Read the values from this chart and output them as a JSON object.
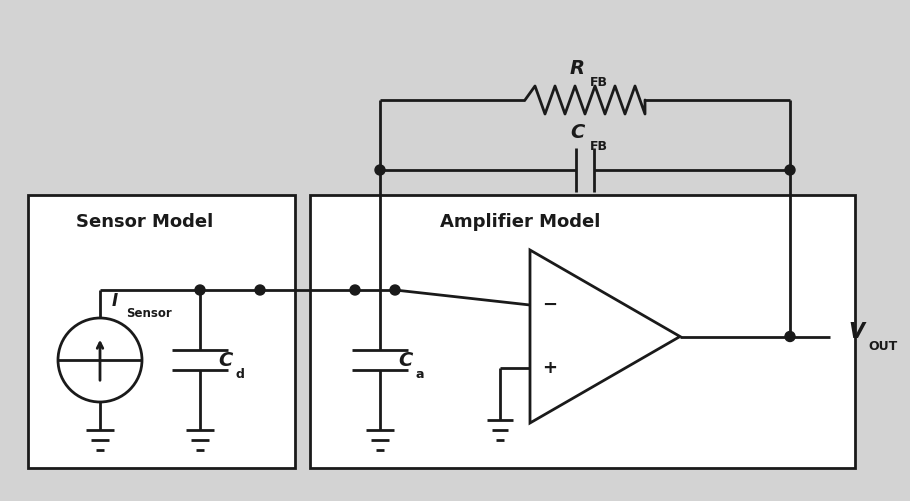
{
  "bg_color": "#d3d3d3",
  "box_color": "#ffffff",
  "line_color": "#1a1a1a",
  "text_color": "#1a1a1a",
  "sensor_label": "Sensor Model",
  "amp_label": "Amplifier Model",
  "vout_main": "V",
  "vout_sub": "OUT",
  "rfb_main": "R",
  "rfb_sub": "FB",
  "cfb_main": "C",
  "cfb_sub": "FB",
  "isensor_main": "I",
  "isensor_sub": "Sensor",
  "cd_main": "C",
  "cd_sub": "d",
  "ca_main": "C",
  "ca_sub": "a",
  "minus_sign": "−",
  "plus_sign": "+"
}
